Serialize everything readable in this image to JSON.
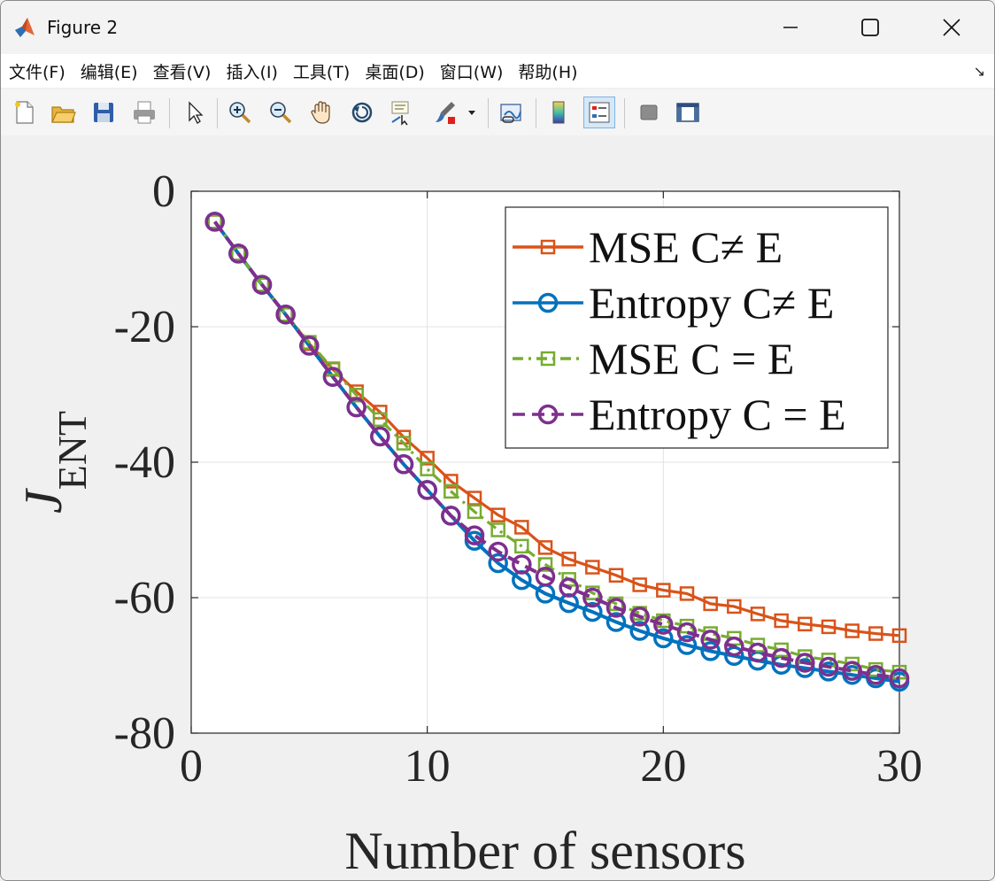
{
  "window": {
    "title": "Figure 2",
    "minimize_label": "—",
    "maximize_label": "☐",
    "close_label": "✕"
  },
  "menu": {
    "items": [
      "文件(F)",
      "编辑(E)",
      "查看(V)",
      "插入(I)",
      "工具(T)",
      "桌面(D)",
      "窗口(W)",
      "帮助(H)"
    ],
    "corner": "↘"
  },
  "toolbar": {
    "buttons": [
      "new-figure",
      "open-file",
      "save",
      "print",
      "edit-plot",
      "zoom-in",
      "zoom-out",
      "pan",
      "rotate-3d",
      "data-cursor",
      "brush",
      "link-plot",
      "insert-colorbar",
      "insert-legend",
      "hide-plot-tools",
      "show-plot-tools"
    ]
  },
  "chart_data": {
    "type": "line",
    "xlabel": "Number of sensors",
    "ylabel": "J",
    "ylabel_subscript": "ENT",
    "xlim": [
      0,
      30
    ],
    "ylim": [
      -80,
      0
    ],
    "xticks": [
      "0",
      "10",
      "20",
      "30"
    ],
    "yticks": [
      "0",
      "-20",
      "-40",
      "-60",
      "-80"
    ],
    "grid": true,
    "legend_position": "top-right",
    "x": [
      1,
      2,
      3,
      4,
      5,
      6,
      7,
      8,
      9,
      10,
      11,
      12,
      13,
      14,
      15,
      16,
      17,
      18,
      19,
      20,
      21,
      22,
      23,
      24,
      25,
      26,
      27,
      28,
      29,
      30
    ],
    "series": [
      {
        "name": "MSE C≠ E",
        "color": "#d95319",
        "line": "solid",
        "marker": "square",
        "values": [
          -4.5,
          -9.2,
          -13.8,
          -18.2,
          -22.5,
          -26.3,
          -29.6,
          -32.6,
          -36.3,
          -39.4,
          -42.8,
          -45.3,
          -47.8,
          -49.6,
          -52.6,
          -54.3,
          -55.5,
          -56.7,
          -58.1,
          -58.9,
          -59.4,
          -60.9,
          -61.3,
          -62.4,
          -63.4,
          -63.9,
          -64.3,
          -64.9,
          -65.3,
          -65.6
        ]
      },
      {
        "name": "Entropy C≠ E",
        "color": "#0072bd",
        "line": "solid",
        "marker": "circle",
        "values": [
          -4.5,
          -9.2,
          -13.8,
          -18.2,
          -22.8,
          -27.4,
          -31.9,
          -36.2,
          -40.3,
          -44.1,
          -47.9,
          -51.6,
          -54.9,
          -57.4,
          -59.4,
          -60.8,
          -62.1,
          -63.6,
          -64.9,
          -66.0,
          -67.0,
          -67.9,
          -68.6,
          -69.3,
          -69.9,
          -70.4,
          -70.9,
          -71.4,
          -71.9,
          -72.4
        ]
      },
      {
        "name": "MSE C = E",
        "color": "#77ac30",
        "line": "dashdot",
        "marker": "square",
        "values": [
          -4.5,
          -9.2,
          -13.8,
          -18.2,
          -22.3,
          -26.2,
          -30.1,
          -33.7,
          -37.2,
          -41.0,
          -44.3,
          -47.3,
          -50.0,
          -52.4,
          -55.1,
          -57.3,
          -59.3,
          -60.9,
          -62.3,
          -63.4,
          -64.2,
          -65.3,
          -66.0,
          -67.0,
          -67.7,
          -68.7,
          -69.2,
          -69.8,
          -70.6,
          -71.0
        ]
      },
      {
        "name": "Entropy C = E",
        "color": "#7e2f8e",
        "line": "dashed",
        "marker": "circle",
        "values": [
          -4.5,
          -9.2,
          -13.8,
          -18.2,
          -22.8,
          -27.4,
          -31.9,
          -36.2,
          -40.3,
          -44.1,
          -47.9,
          -50.8,
          -53.2,
          -55.1,
          -56.9,
          -58.5,
          -60.0,
          -61.5,
          -62.8,
          -64.0,
          -65.1,
          -66.2,
          -67.2,
          -68.1,
          -68.9,
          -69.6,
          -70.2,
          -70.8,
          -71.4,
          -71.9
        ]
      }
    ]
  }
}
